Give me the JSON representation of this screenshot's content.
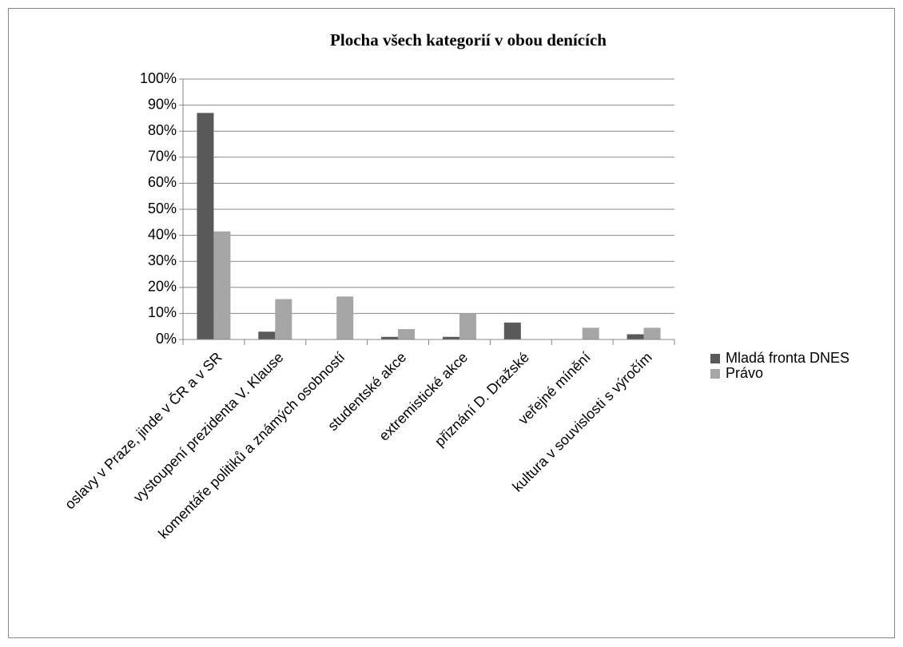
{
  "chart_data": {
    "type": "bar",
    "title": "Plocha všech kategorií v obou denících",
    "categories": [
      "oslavy v Praze, jinde v ČR a v SR",
      "vystoupení prezidenta V. Klause",
      "komentáře politiků a známých osobností",
      "studentské akce",
      "extremistické akce",
      "přiznání D. Dražské",
      "veřejné mínění",
      "kultura v souvislosti s výročím"
    ],
    "series": [
      {
        "name": "Mladá fronta DNES",
        "color": "#595959",
        "values": [
          87,
          3,
          0,
          1,
          1,
          6.5,
          0,
          2
        ]
      },
      {
        "name": "Právo",
        "color": "#a6a6a6",
        "values": [
          41.5,
          15.5,
          16.5,
          4,
          10,
          0,
          4.5,
          4.5
        ]
      }
    ],
    "ylim": [
      0,
      100
    ],
    "yticks": [
      {
        "value": 0,
        "label": "0%"
      },
      {
        "value": 10,
        "label": "10%"
      },
      {
        "value": 20,
        "label": "20%"
      },
      {
        "value": 30,
        "label": "30%"
      },
      {
        "value": 40,
        "label": "40%"
      },
      {
        "value": 50,
        "label": "50%"
      },
      {
        "value": 60,
        "label": "60%"
      },
      {
        "value": 70,
        "label": "70%"
      },
      {
        "value": 80,
        "label": "80%"
      },
      {
        "value": 90,
        "label": "90%"
      },
      {
        "value": 100,
        "label": "100%"
      }
    ],
    "grid": true,
    "legend": "right"
  }
}
